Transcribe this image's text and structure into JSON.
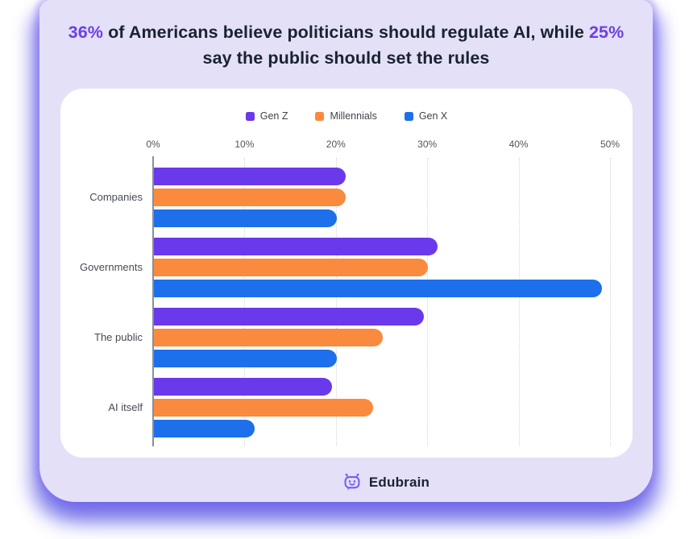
{
  "title": {
    "line1_accent1": "36%",
    "line1_mid": " of Americans believe politicians should regulate AI, while ",
    "line1_accent2": "25%",
    "line2": "say the public should set the rules"
  },
  "legend": [
    {
      "label": "Gen Z",
      "color": "#6A39EB"
    },
    {
      "label": "Millennials",
      "color": "#FA8A3D"
    },
    {
      "label": "Gen X",
      "color": "#1D6FEB"
    }
  ],
  "chart_data": {
    "type": "bar",
    "orientation": "horizontal",
    "title": "36% of Americans believe politicians should regulate AI, while 25% say the public should set the rules",
    "categories": [
      "Companies",
      "Governments",
      "The public",
      "AI itself"
    ],
    "series": [
      {
        "name": "Gen Z",
        "color": "#6A39EB",
        "values": [
          21,
          31,
          29.5,
          19.5
        ]
      },
      {
        "name": "Millennials",
        "color": "#FA8A3D",
        "values": [
          21,
          30,
          25,
          24
        ]
      },
      {
        "name": "Gen X",
        "color": "#1D6FEB",
        "values": [
          20,
          49,
          20,
          11
        ]
      }
    ],
    "x_ticks": [
      "0%",
      "10%",
      "20%",
      "30%",
      "40%",
      "50%"
    ],
    "xlim": [
      0,
      50
    ],
    "grid": "vertical-dotted",
    "legend_position": "top"
  },
  "footer": {
    "brand": "Edubrain",
    "logo_icon": "robot-chat-bubble-icon"
  },
  "colors": {
    "panel_background": "#E4E0F8",
    "card_background": "#FFFFFF",
    "title_text": "#192231",
    "title_accent": "#6B40E6",
    "gen_z": "#6A39EB",
    "millennials": "#FA8A3D",
    "gen_x": "#1D6FEB",
    "logo": "#7B5BF7"
  }
}
